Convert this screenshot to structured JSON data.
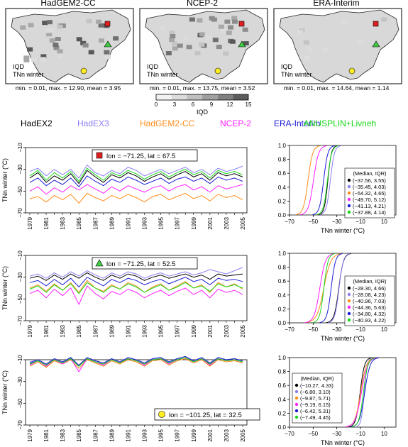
{
  "maps": [
    {
      "title": "HadGEM2-CC",
      "label1": "IQD",
      "label2": "TNn winter",
      "stats": "min. = 0.01, max. = 12.90, mean = 3.95"
    },
    {
      "title": "NCEP-2",
      "label1": "IQD",
      "label2": "TNn winter",
      "stats": "min. = 0.01, max. = 13.75, mean = 3.52"
    },
    {
      "title": "ERA-Interim",
      "label1": "IQD",
      "label2": "TNn winter",
      "stats": "min. = 0.01, max. = 14.64, mean = 1.14"
    }
  ],
  "colorbar": {
    "ticks": [
      "0",
      "3",
      "6",
      "9",
      "12",
      "15"
    ],
    "label": "IQD"
  },
  "legend": [
    {
      "name": "HadEX2",
      "color": "#000000"
    },
    {
      "name": "HadEX3",
      "color": "#8c7ff0"
    },
    {
      "name": "HadGEM2-CC",
      "color": "#ff8c1a"
    },
    {
      "name": "NCEP-2",
      "color": "#ff20ff"
    },
    {
      "name": "ERA-Interim",
      "color": "#1c1cd6"
    },
    {
      "name": "ANUSPLIN+Livneh",
      "color": "#18d818"
    }
  ],
  "markers": {
    "square": "#e02020",
    "triangle": "#40cc40",
    "circle": "#ffee22"
  },
  "chart_data": [
    {
      "type": "line",
      "marker": "square",
      "location": "lon = −71.25, lat = 67.5",
      "ylabel": "TNn winter (°C)",
      "ylim": [
        -70,
        -10
      ],
      "yticks": [
        "−70",
        "−50",
        "−30",
        "−10"
      ],
      "x": [
        1979,
        1980,
        1981,
        1982,
        1983,
        1984,
        1985,
        1986,
        1987,
        1988,
        1989,
        1990,
        1991,
        1992,
        1993,
        1994,
        1995,
        1996,
        1997,
        1998,
        1999,
        2000,
        2001,
        2002,
        2003,
        2004,
        2005
      ],
      "xticks": [
        "1979",
        "1981",
        "1983",
        "1985",
        "1987",
        "1989",
        "1991",
        "1993",
        "1995",
        "1997",
        "1999",
        "2001",
        "2003",
        "2005"
      ],
      "series": [
        {
          "name": "HadEX2",
          "values": [
            -38,
            -33,
            -42,
            -36,
            -40,
            -34,
            -43,
            -31,
            -37,
            -42,
            -35,
            -38,
            -33,
            -36,
            -41,
            -37,
            -34,
            -39,
            -35,
            -32,
            -37,
            -34,
            -40,
            -33,
            -36,
            -34,
            -37
          ]
        },
        {
          "name": "HadEX3",
          "values": [
            -32,
            -29,
            -36,
            -30,
            -35,
            -30,
            -38,
            -26,
            -33,
            -36,
            -31,
            -34,
            -28,
            -31,
            -36,
            -33,
            -30,
            -34,
            -31,
            -28,
            -33,
            -30,
            -35,
            -29,
            -32,
            -30,
            -27
          ]
        },
        {
          "name": "HadGEM2-CC",
          "values": [
            -57,
            -55,
            -60,
            -54,
            -58,
            -53,
            -61,
            -52,
            -56,
            -59,
            -54,
            -57,
            -53,
            -56,
            -60,
            -55,
            -53,
            -58,
            -55,
            -52,
            -57,
            -54,
            -59,
            -53,
            -56,
            -54,
            -58
          ]
        },
        {
          "name": "NCEP-2",
          "values": [
            -50,
            -46,
            -53,
            -47,
            -51,
            -45,
            -49,
            -44,
            -48,
            -52,
            -46,
            -50,
            -45,
            -48,
            -51,
            -47,
            -45,
            -50,
            -46,
            -44,
            -49,
            -46,
            -51,
            -45,
            -48,
            -46,
            -44
          ]
        },
        {
          "name": "ERA-Interim",
          "values": [
            -42,
            -38,
            -45,
            -40,
            -44,
            -38,
            -46,
            -36,
            -41,
            -45,
            -39,
            -42,
            -37,
            -40,
            -44,
            -41,
            -38,
            -43,
            -39,
            -37,
            -41,
            -38,
            -43,
            -37,
            -40,
            -38,
            -41
          ]
        },
        {
          "name": "ANUSPLIN+Livneh",
          "values": [
            -36,
            -31,
            -40,
            -33,
            -38,
            -32,
            -41,
            -29,
            -35,
            -40,
            -33,
            -36,
            -31,
            -34,
            -39,
            -35,
            -32,
            -37,
            -33,
            -30,
            -35,
            -32,
            -38,
            -31,
            -34,
            -32,
            -35
          ]
        }
      ],
      "cdf": {
        "xlim": [
          -70,
          20
        ],
        "xticks": [
          "−70",
          "−50",
          "−30",
          "−10",
          "10"
        ],
        "yticks": [
          "0.0",
          "0.2",
          "0.4",
          "0.6",
          "0.8",
          "1.0"
        ],
        "xlabel": "TNn winter (°C)",
        "legend_title": "(Median, IQR)",
        "entries": [
          {
            "label": "(−37.56, 3.55)",
            "median": -37.56,
            "iqr": 3.55
          },
          {
            "label": "(−35.45, 4.03)",
            "median": -35.45,
            "iqr": 4.03
          },
          {
            "label": "(−54.32, 4.65)",
            "median": -54.32,
            "iqr": 4.65
          },
          {
            "label": "(−49.70, 5.12)",
            "median": -49.7,
            "iqr": 5.12
          },
          {
            "label": "(−41.13, 4.21)",
            "median": -41.13,
            "iqr": 4.21
          },
          {
            "label": "(−37.88, 4.14)",
            "median": -37.88,
            "iqr": 4.14
          }
        ]
      }
    },
    {
      "type": "line",
      "marker": "triangle",
      "location": "lon = −71.25, lat = 52.5",
      "ylabel": "TNn winter (°C)",
      "ylim": [
        -70,
        -10
      ],
      "yticks": [
        "−70",
        "−50",
        "−30",
        "−10"
      ],
      "x": [
        1979,
        1980,
        1981,
        1982,
        1983,
        1984,
        1985,
        1986,
        1987,
        1988,
        1989,
        1990,
        1991,
        1992,
        1993,
        1994,
        1995,
        1996,
        1997,
        1998,
        1999,
        2000,
        2001,
        2002,
        2003,
        2004,
        2005
      ],
      "xticks": [
        "1979",
        "1981",
        "1983",
        "1985",
        "1987",
        "1989",
        "1991",
        "1993",
        "1995",
        "1997",
        "1999",
        "2001",
        "2003",
        "2005"
      ],
      "series": [
        {
          "name": "HadEX2",
          "values": [
            -31,
            -29,
            -33,
            -28,
            -32,
            -27,
            -31,
            -26,
            -30,
            -33,
            -28,
            -31,
            -27,
            -29,
            -33,
            -30,
            -28,
            -31,
            -29,
            -27,
            -30,
            -28,
            -32,
            -27,
            -29,
            -28,
            -27
          ]
        },
        {
          "name": "HadEX3",
          "values": [
            -29,
            -27,
            -31,
            -26,
            -30,
            -25,
            -29,
            -24,
            -28,
            -31,
            -26,
            -29,
            -25,
            -27,
            -31,
            -28,
            -26,
            -29,
            -27,
            -25,
            -28,
            -26,
            -23,
            -25,
            -27,
            -24,
            -21
          ]
        },
        {
          "name": "HadGEM2-CC",
          "values": [
            -40,
            -37,
            -43,
            -36,
            -42,
            -35,
            -44,
            -33,
            -40,
            -43,
            -37,
            -41,
            -35,
            -38,
            -44,
            -39,
            -36,
            -42,
            -38,
            -34,
            -40,
            -37,
            -44,
            -35,
            -39,
            -36,
            -41
          ]
        },
        {
          "name": "NCEP-2",
          "values": [
            -45,
            -42,
            -49,
            -41,
            -47,
            -40,
            -55,
            -38,
            -45,
            -50,
            -43,
            -46,
            -41,
            -44,
            -49,
            -45,
            -42,
            -47,
            -43,
            -40,
            -46,
            -42,
            -49,
            -41,
            -44,
            -42,
            -46
          ]
        },
        {
          "name": "ERA-Interim",
          "values": [
            -35,
            -33,
            -38,
            -32,
            -37,
            -31,
            -39,
            -30,
            -34,
            -38,
            -32,
            -35,
            -31,
            -33,
            -37,
            -34,
            -32,
            -36,
            -33,
            -30,
            -34,
            -32,
            -37,
            -31,
            -33,
            -32,
            -34
          ]
        },
        {
          "name": "ANUSPLIN+Livneh",
          "values": [
            -41,
            -38,
            -44,
            -37,
            -42,
            -36,
            -45,
            -35,
            -40,
            -44,
            -38,
            -41,
            -36,
            -39,
            -44,
            -40,
            -37,
            -42,
            -39,
            -35,
            -40,
            -38,
            -43,
            -36,
            -39,
            -37,
            -40
          ]
        }
      ],
      "cdf": {
        "xlim": [
          -70,
          20
        ],
        "xticks": [
          "−70",
          "−50",
          "−30",
          "−10",
          "10"
        ],
        "yticks": [
          "0.0",
          "0.2",
          "0.4",
          "0.6",
          "0.8",
          "1.0"
        ],
        "xlabel": "TNn winter (°C)",
        "legend_title": "(Median, IQR)",
        "entries": [
          {
            "label": "(−28.30, 4.66)",
            "median": -28.3,
            "iqr": 4.66
          },
          {
            "label": "(−28.08, 4.23)",
            "median": -28.08,
            "iqr": 4.23
          },
          {
            "label": "(−40.96, 7.03)",
            "median": -40.96,
            "iqr": 7.03
          },
          {
            "label": "(−44.36, 5.63)",
            "median": -44.36,
            "iqr": 5.63
          },
          {
            "label": "(−34.80, 4.32)",
            "median": -34.8,
            "iqr": 4.32
          },
          {
            "label": "(−40.93, 4.22)",
            "median": -40.93,
            "iqr": 4.22
          }
        ]
      }
    },
    {
      "type": "line",
      "marker": "circle",
      "location": "lon = −101.25, lat = 32.5",
      "ylabel": "TNn winter (°C)",
      "ylim": [
        -70,
        -10
      ],
      "yticks": [
        "−70",
        "−50",
        "−30",
        "−10"
      ],
      "x": [
        1979,
        1980,
        1981,
        1982,
        1983,
        1984,
        1985,
        1986,
        1987,
        1988,
        1989,
        1990,
        1991,
        1992,
        1993,
        1994,
        1995,
        1996,
        1997,
        1998,
        1999,
        2000,
        2001,
        2002,
        2003,
        2004,
        2005
      ],
      "xticks": [
        "1979",
        "1981",
        "1983",
        "1985",
        "1987",
        "1989",
        "1991",
        "1993",
        "1995",
        "1997",
        "1999",
        "2001",
        "2003",
        "2005"
      ],
      "series": [
        {
          "name": "HadEX2",
          "values": [
            -14,
            -11,
            -15,
            -10,
            -13,
            -9,
            -16,
            -9,
            -12,
            -14,
            -10,
            -13,
            -9,
            -11,
            -14,
            -10,
            -9,
            -13,
            -10,
            -8,
            -12,
            -9,
            -14,
            -9,
            -11,
            -10,
            -12
          ]
        },
        {
          "name": "HadEX3",
          "values": [
            -12,
            -10,
            -14,
            -9,
            -12,
            -8,
            -15,
            -8,
            -11,
            -13,
            -9,
            -12,
            -8,
            -10,
            -13,
            -9,
            -8,
            -12,
            -9,
            -7,
            -11,
            -8,
            -13,
            -8,
            -10,
            -9,
            -11
          ]
        },
        {
          "name": "HadGEM2-CC",
          "values": [
            -16,
            -12,
            -17,
            -11,
            -14,
            -10,
            -18,
            -10,
            -13,
            -16,
            -11,
            -14,
            -10,
            -12,
            -16,
            -11,
            -10,
            -15,
            -11,
            -9,
            -13,
            -10,
            -16,
            -10,
            -12,
            -11,
            -13
          ]
        },
        {
          "name": "NCEP-2",
          "values": [
            -15,
            -11,
            -16,
            -10,
            -14,
            -9,
            -21,
            -9,
            -12,
            -15,
            -10,
            -13,
            -9,
            -11,
            -15,
            -10,
            -9,
            -14,
            -10,
            -8,
            -12,
            -9,
            -15,
            -9,
            -11,
            -10,
            -12
          ]
        },
        {
          "name": "ERA-Interim",
          "values": [
            -13,
            -10,
            -14,
            -9,
            -12,
            -8,
            -15,
            -8,
            -11,
            -13,
            -9,
            -12,
            -8,
            -10,
            -13,
            -9,
            -8,
            -12,
            -9,
            -7,
            -11,
            -8,
            -13,
            -8,
            -10,
            -9,
            -11
          ]
        },
        {
          "name": "ANUSPLIN+Livneh",
          "values": [
            -14,
            -11,
            -15,
            -10,
            -13,
            -9,
            -16,
            -9,
            -12,
            -14,
            -10,
            -13,
            -9,
            -11,
            -14,
            -10,
            -9,
            -13,
            -10,
            -8,
            -12,
            -9,
            -14,
            -9,
            -11,
            -10,
            -12
          ]
        }
      ],
      "cdf": {
        "xlim": [
          -70,
          20
        ],
        "xticks": [
          "−70",
          "−50",
          "−30",
          "−10",
          "10"
        ],
        "yticks": [
          "0.0",
          "0.2",
          "0.4",
          "0.6",
          "0.8",
          "1.0"
        ],
        "xlabel": "TNn winter (°C)",
        "legend_title": "(Median, IQR)",
        "entries": [
          {
            "label": "(−10.27, 4.33)",
            "median": -10.27,
            "iqr": 4.33
          },
          {
            "label": "(−6.80, 3.10)",
            "median": -6.8,
            "iqr": 3.1
          },
          {
            "label": "(−9.87, 5.71)",
            "median": -9.87,
            "iqr": 5.71
          },
          {
            "label": "(−9.19, 6.15)",
            "median": -9.19,
            "iqr": 6.15
          },
          {
            "label": "(−6.42, 5.31)",
            "median": -6.42,
            "iqr": 5.31
          },
          {
            "label": "(−7.49, 4.45)",
            "median": -7.49,
            "iqr": 4.45
          }
        ]
      }
    }
  ]
}
